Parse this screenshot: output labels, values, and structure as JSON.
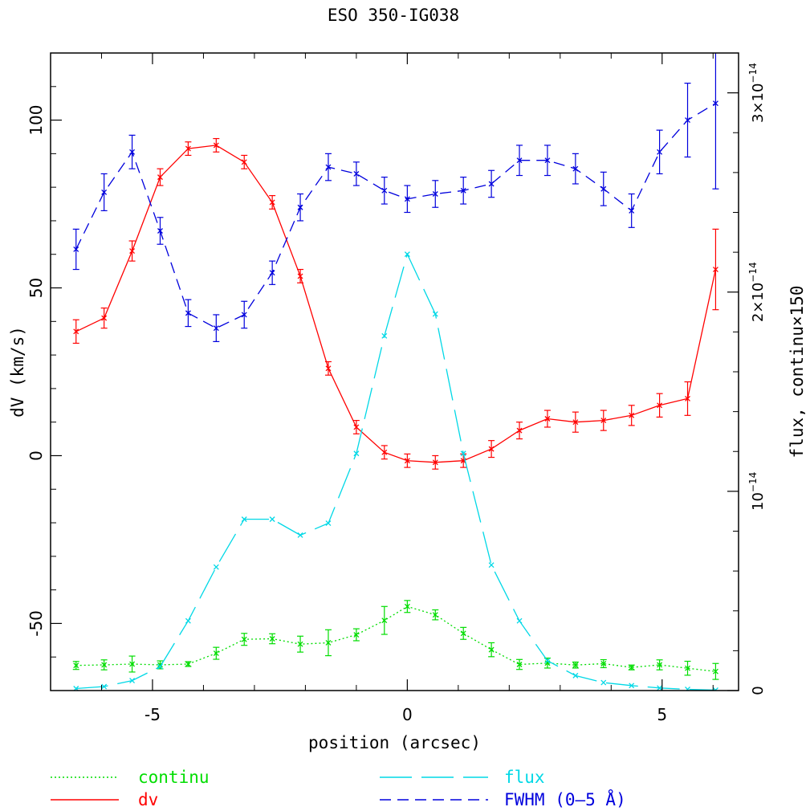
{
  "chart_data": {
    "type": "line",
    "title": "ESO 350-IG038",
    "xlabel": "position (arcsec)",
    "ylabel": "dV (km/s)",
    "y2label": "flux, continu×150",
    "xlim": [
      -7,
      6.5
    ],
    "ylim": [
      -70,
      120
    ],
    "y2lim": [
      0,
      3.2e-14
    ],
    "xticks": [
      -5,
      0,
      5
    ],
    "xtick_labels": [
      "-5",
      "0",
      "5"
    ],
    "yticks": [
      -50,
      0,
      50,
      100
    ],
    "ytick_labels": [
      "-50",
      "0",
      "50",
      "100"
    ],
    "y2ticks": [
      {
        "value": 1e-14,
        "base": "10",
        "exp": "−14"
      },
      {
        "value": 2e-14,
        "base": "2×10",
        "exp": "−14"
      },
      {
        "value": 3e-14,
        "base": "3×10",
        "exp": "−14"
      }
    ],
    "y2_zero_label": "0",
    "grid": false,
    "legend_position": "bottom",
    "x": [
      -6.5,
      -5.95,
      -5.4,
      -4.85,
      -4.3,
      -3.75,
      -3.2,
      -2.65,
      -2.1,
      -1.55,
      -1.0,
      -0.45,
      0.0,
      0.55,
      1.1,
      1.65,
      2.2,
      2.75,
      3.3,
      3.85,
      4.4,
      4.95,
      5.5,
      6.05
    ],
    "series": [
      {
        "name": "continu",
        "axis": "right",
        "color": "#00dd00",
        "dash": "dotted",
        "values": [
          1.26e-15,
          1.29e-15,
          1.33e-15,
          1.29e-15,
          1.33e-15,
          1.87e-15,
          2.57e-15,
          2.6e-15,
          2.33e-15,
          2.4e-15,
          2.8e-15,
          3.52e-15,
          4.22e-15,
          3.8e-15,
          2.87e-15,
          2.05e-15,
          1.31e-15,
          1.38e-15,
          1.28e-15,
          1.35e-15,
          1.16e-15,
          1.29e-15,
          1.12e-15,
          9.6e-16
        ],
        "errors": [
          2e-16,
          2.5e-16,
          4e-16,
          2e-16,
          1.2e-16,
          3e-16,
          3e-16,
          2.5e-16,
          4e-16,
          6.5e-16,
          3e-16,
          7e-16,
          3e-16,
          2.5e-16,
          3e-16,
          3.5e-16,
          2.5e-16,
          2.5e-16,
          1.5e-16,
          2e-16,
          1.2e-16,
          2.5e-16,
          3.5e-16,
          4e-16
        ]
      },
      {
        "name": "dv",
        "axis": "left",
        "color": "#ff0000",
        "dash": "solid",
        "values": [
          37,
          41,
          61,
          83,
          91.5,
          92.5,
          87.5,
          75.5,
          53.5,
          26,
          8.5,
          1,
          -1.5,
          -2,
          -1.5,
          2,
          7.5,
          11,
          10,
          10.5,
          12,
          15,
          17,
          55.5
        ],
        "errors": [
          3.5,
          3,
          3,
          2.5,
          2,
          2,
          2,
          2,
          2,
          2,
          2,
          2,
          2,
          2,
          2,
          2.5,
          2.5,
          2.5,
          3,
          3,
          3,
          3.5,
          5,
          12
        ]
      },
      {
        "name": "flux",
        "axis": "right",
        "color": "#00d8e6",
        "dash": "longdash",
        "values": [
          1e-16,
          2e-16,
          5e-16,
          1.2e-15,
          3.5e-15,
          6.2e-15,
          8.6e-15,
          8.6e-15,
          7.8e-15,
          8.4e-15,
          1.19e-14,
          1.78e-14,
          2.19e-14,
          1.89e-14,
          1.19e-14,
          6.3e-15,
          3.5e-15,
          1.5e-15,
          7.5e-16,
          4e-16,
          2.5e-16,
          1.3e-16,
          6e-17,
          2e-17
        ],
        "errors": []
      },
      {
        "name": "FWHM (0–5 Å)",
        "axis": "left",
        "color": "#0000dd",
        "dash": "dashed",
        "values": [
          61.5,
          78.5,
          90.5,
          67,
          42.5,
          38,
          42,
          54.5,
          74,
          86,
          84,
          79,
          76.5,
          78,
          79,
          81,
          88,
          88,
          85.5,
          79.5,
          73,
          90.5,
          100,
          105
        ],
        "errors": [
          6,
          5.5,
          5,
          4,
          4,
          4,
          4,
          3.5,
          4,
          4,
          3.5,
          4,
          4,
          4,
          4,
          4,
          4.5,
          4.5,
          4.5,
          5,
          5,
          6.5,
          11,
          25.5
        ]
      }
    ]
  }
}
